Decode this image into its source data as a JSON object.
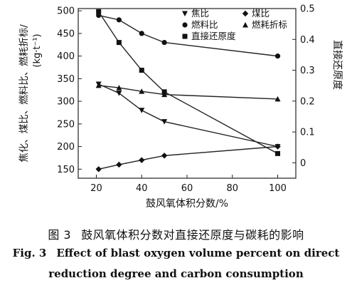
{
  "chart_data": {
    "type": "line",
    "x": [
      21,
      30,
      40,
      50,
      100
    ],
    "xlabel": "鼓风氧体积分数/%",
    "xlim": [
      12,
      108
    ],
    "xticks": [
      "20",
      "40",
      "60",
      "80",
      "100"
    ],
    "ylabel_left": "焦化、煤比、燃料比、燃耗折标/",
    "ylabel_left_unit": "(kg·t⁻¹)",
    "ylim_left": [
      130,
      505
    ],
    "yticks_left": [
      "150",
      "200",
      "250",
      "300",
      "350",
      "400",
      "450",
      "500"
    ],
    "ylabel_right": "直接还原度",
    "ylim_right": [
      -0.05,
      0.5
    ],
    "yticks_right": [
      "0",
      "0.1",
      "0.2",
      "0.3",
      "0.4",
      "0.5"
    ],
    "series": [
      {
        "name": "焦比",
        "axis": "left",
        "marker": "triangle-down",
        "values": [
          338,
          318,
          280,
          255,
          200
        ]
      },
      {
        "name": "煤比",
        "axis": "left",
        "marker": "diamond",
        "values": [
          150,
          160,
          170,
          180,
          200
        ]
      },
      {
        "name": "燃料比",
        "axis": "left",
        "marker": "circle",
        "values": [
          490,
          480,
          450,
          430,
          400
        ]
      },
      {
        "name": "燃耗折标",
        "axis": "left",
        "marker": "triangle-up",
        "values": [
          335,
          330,
          322,
          315,
          305
        ]
      },
      {
        "name": "直接还原度",
        "axis": "right",
        "marker": "square",
        "values": [
          0.49,
          0.39,
          0.3,
          0.23,
          0.03
        ]
      }
    ],
    "legend_position": "top-right"
  },
  "caption": {
    "label_cn": "图 3",
    "text_cn": "鼓风氧体积分数对直接还原度与碳耗的影响",
    "label_en": "Fig. 3",
    "line1_en": "Effect of blast oxygen volume percent on direct",
    "line2_en": "reduction degree and carbon consumption"
  }
}
